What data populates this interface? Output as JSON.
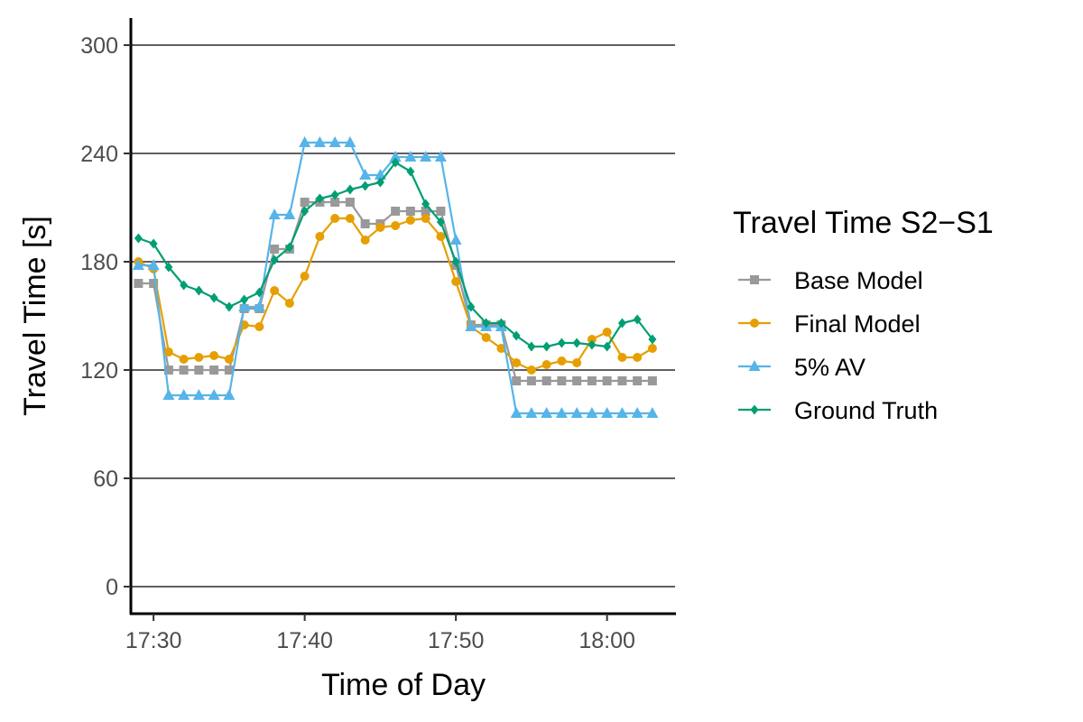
{
  "chart_data": {
    "type": "line",
    "xlabel": "Time of Day",
    "ylabel": "Travel Time [s]",
    "xlim": [
      1048.5,
      1084.5
    ],
    "ylim": [
      -15,
      315
    ],
    "x_ticks": [
      {
        "value": 1050,
        "label": "17:30"
      },
      {
        "value": 1060,
        "label": "17:40"
      },
      {
        "value": 1070,
        "label": "17:50"
      },
      {
        "value": 1080,
        "label": "18:00"
      }
    ],
    "y_ticks": [
      {
        "value": 0,
        "label": "0"
      },
      {
        "value": 60,
        "label": "60"
      },
      {
        "value": 120,
        "label": "120"
      },
      {
        "value": 180,
        "label": "180"
      },
      {
        "value": 240,
        "label": "240"
      },
      {
        "value": 300,
        "label": "300"
      }
    ],
    "grid": "horizontal major lines",
    "x": [
      1049,
      1050,
      1051,
      1052,
      1053,
      1054,
      1055,
      1056,
      1057,
      1058,
      1059,
      1060,
      1061,
      1062,
      1063,
      1064,
      1065,
      1066,
      1067,
      1068,
      1069,
      1070,
      1071,
      1072,
      1073,
      1074,
      1075,
      1076,
      1077,
      1078,
      1079,
      1080,
      1081,
      1082,
      1083
    ],
    "legend": {
      "title": "Travel Time S2−S1",
      "position": "right"
    },
    "series": [
      {
        "name": "Base Model",
        "color": "#999999",
        "marker": "square",
        "values": [
          168,
          168,
          120,
          120,
          120,
          120,
          120,
          154,
          154,
          187,
          187,
          213,
          213,
          213,
          213,
          201,
          201,
          208,
          208,
          208,
          208,
          178,
          145,
          145,
          145,
          114,
          114,
          114,
          114,
          114,
          114,
          114,
          114,
          114,
          114
        ]
      },
      {
        "name": "Final Model",
        "color": "#E69F00",
        "marker": "circle",
        "values": [
          180,
          176,
          130,
          126,
          127,
          128,
          126,
          145,
          144,
          164,
          157,
          172,
          194,
          204,
          204,
          192,
          199,
          200,
          203,
          204,
          194,
          169,
          144,
          138,
          132,
          124,
          120,
          123,
          125,
          124,
          137,
          141,
          127,
          127,
          132
        ]
      },
      {
        "name": "5% AV",
        "color": "#56B4E9",
        "marker": "triangle",
        "values": [
          178,
          178,
          106,
          106,
          106,
          106,
          106,
          155,
          155,
          206,
          206,
          246,
          246,
          246,
          246,
          228,
          228,
          238,
          238,
          238,
          238,
          192,
          144,
          144,
          144,
          96,
          96,
          96,
          96,
          96,
          96,
          96,
          96,
          96,
          96
        ]
      },
      {
        "name": "Ground Truth",
        "color": "#009E73",
        "marker": "diamond",
        "values": [
          193,
          190,
          177,
          167,
          164,
          160,
          155,
          159,
          163,
          181,
          188,
          208,
          215,
          217,
          220,
          222,
          224,
          235,
          230,
          212,
          202,
          180,
          155,
          146,
          146,
          139,
          133,
          133,
          135,
          135,
          134,
          133,
          146,
          148,
          137
        ]
      }
    ]
  }
}
